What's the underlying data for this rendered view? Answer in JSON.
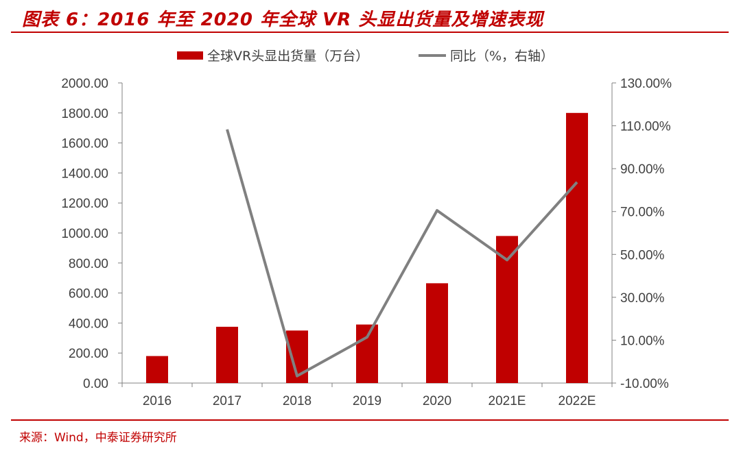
{
  "title": "图表 6：2016 年至 2020 年全球 VR 头显出货量及增速表现",
  "source": "来源：Wind，中泰证券研究所",
  "chart_data": {
    "type": "bar",
    "categories": [
      "2016",
      "2017",
      "2018",
      "2019",
      "2020",
      "2021E",
      "2022E"
    ],
    "series": [
      {
        "name": "全球VR头显出货量（万台）",
        "type": "bar",
        "axis": "left",
        "color": "#c00000",
        "values": [
          180,
          375,
          350,
          390,
          665,
          980,
          1800
        ]
      },
      {
        "name": "同比（%，右轴）",
        "type": "line",
        "axis": "right",
        "color": "#808080",
        "values": [
          null,
          108.3,
          -6.7,
          11.4,
          70.5,
          47.4,
          83.7
        ]
      }
    ],
    "y_left": {
      "min": 0,
      "max": 2000,
      "step": 200,
      "tick_labels": [
        "0.00",
        "200.00",
        "400.00",
        "600.00",
        "800.00",
        "1000.00",
        "1200.00",
        "1400.00",
        "1600.00",
        "1800.00",
        "2000.00"
      ]
    },
    "y_right": {
      "min": -10,
      "max": 130,
      "step": 20,
      "tick_labels": [
        "-10.00%",
        "10.00%",
        "30.00%",
        "50.00%",
        "70.00%",
        "90.00%",
        "110.00%",
        "130.00%"
      ]
    },
    "legend_position": "top-center",
    "grid": false
  }
}
